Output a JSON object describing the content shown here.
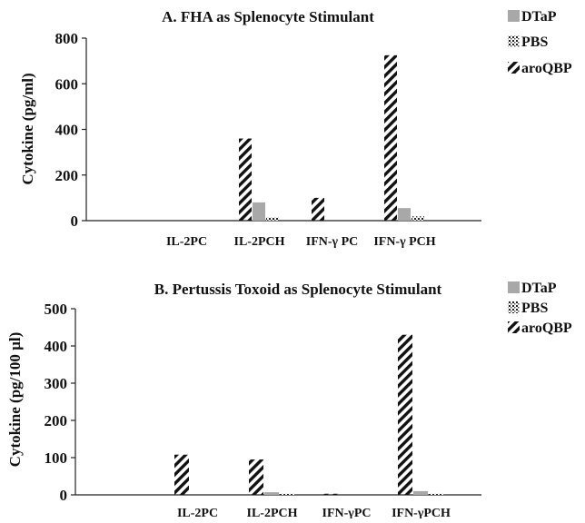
{
  "chart_data": [
    {
      "type": "bar",
      "title": "A. FHA as Splenocyte Stimulant",
      "ylabel": "Cytokine (pg/ml)",
      "xlabel": "",
      "ylim": [
        0,
        800
      ],
      "yticks": [
        "0",
        "200",
        "400",
        "600",
        "800"
      ],
      "categories": [
        "",
        "IL-2PC",
        "IL-2PCH",
        "IFN-γ PC",
        "IFN-γ PCH"
      ],
      "series": [
        {
          "name": "aroQBP",
          "values": [
            0,
            0,
            360,
            100,
            725
          ]
        },
        {
          "name": "DTaP",
          "values": [
            0,
            0,
            80,
            0,
            55
          ]
        },
        {
          "name": "PBS",
          "values": [
            0,
            0,
            15,
            0,
            20
          ]
        }
      ],
      "legend": {
        "position": "top-right",
        "entries": [
          "DTaP",
          "PBS",
          "aroQBP"
        ]
      }
    },
    {
      "type": "bar",
      "title": "B. Pertussis Toxoid as Splenocyte Stimulant",
      "ylabel": "Cytokine (pg/100 µl)",
      "xlabel": "",
      "ylim": [
        0,
        500
      ],
      "yticks": [
        "0",
        "100",
        "200",
        "300",
        "400",
        "500"
      ],
      "categories": [
        "",
        "IL-2PC",
        "IL-2PCH",
        "IFN-γPC",
        "IFN-γPCH"
      ],
      "series": [
        {
          "name": "aroQBP",
          "values": [
            0,
            108,
            95,
            3,
            430
          ]
        },
        {
          "name": "DTaP",
          "values": [
            0,
            0,
            7,
            0,
            10
          ]
        },
        {
          "name": "PBS",
          "values": [
            0,
            0,
            4,
            0,
            4
          ]
        }
      ],
      "legend": {
        "position": "top-right",
        "entries": [
          "DTaP",
          "PBS",
          "aroQBP"
        ]
      }
    }
  ],
  "colors": {
    "DTaP": "#a8a8a8",
    "axis": "#222222",
    "hatch": "#111111"
  }
}
